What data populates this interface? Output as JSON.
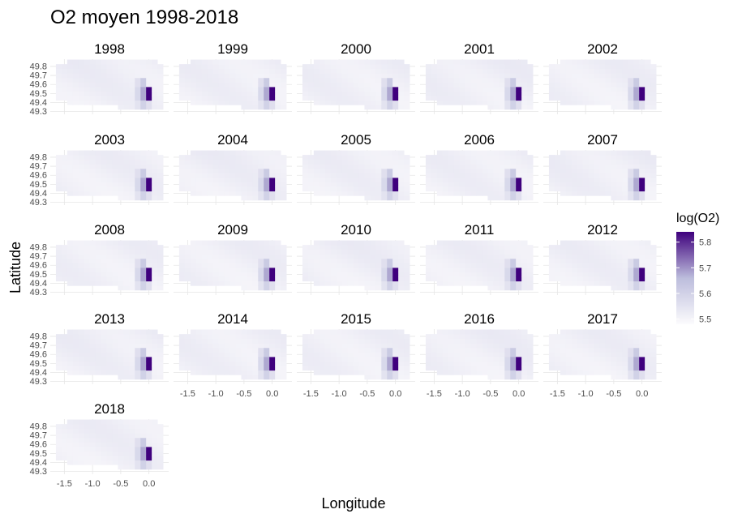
{
  "chart_data": {
    "type": "heatmap",
    "title": "O2 moyen 1998-2018",
    "xlabel": "Longitude",
    "ylabel": "Latitude",
    "facets": [
      "1998",
      "1999",
      "2000",
      "2001",
      "2002",
      "2003",
      "2004",
      "2005",
      "2006",
      "2007",
      "2008",
      "2009",
      "2010",
      "2011",
      "2012",
      "2013",
      "2014",
      "2015",
      "2016",
      "2017",
      "2018"
    ],
    "x_ticks": [
      "-1.5",
      "-1.0",
      "-0.5",
      "0.0"
    ],
    "y_ticks": [
      "49.8",
      "49.7",
      "49.6",
      "49.5",
      "49.4",
      "49.3"
    ],
    "xlim": [
      -1.75,
      0.35
    ],
    "ylim": [
      49.27,
      49.88
    ],
    "legend": {
      "title": "log(O2)",
      "position": "right",
      "ticks": [
        "5.8",
        "5.7",
        "5.6",
        "5.5"
      ],
      "range": [
        5.48,
        5.84
      ],
      "color_low": "#fcfbfd",
      "color_high": "#3f007d"
    },
    "grid": true,
    "baseline_value_range": [
      5.5,
      5.54
    ],
    "hotspots": [
      {
        "lon": 0.0,
        "lat": 49.5,
        "value": 5.84
      },
      {
        "lon": -0.1,
        "lat": 49.5,
        "value": 5.68
      },
      {
        "lon": -0.1,
        "lat": 49.6,
        "value": 5.62
      },
      {
        "lon": -0.1,
        "lat": 49.4,
        "value": 5.6
      },
      {
        "lon": -0.2,
        "lat": 49.5,
        "value": 5.58
      },
      {
        "lon": -0.2,
        "lat": 49.6,
        "value": 5.56
      },
      {
        "lon": -0.2,
        "lat": 49.4,
        "value": 5.55
      },
      {
        "lon": 0.0,
        "lat": 49.4,
        "value": 5.56
      }
    ]
  }
}
